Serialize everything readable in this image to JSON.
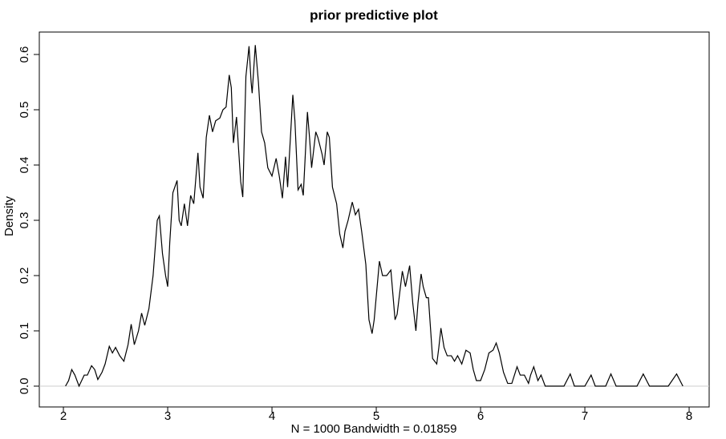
{
  "chart_data": {
    "type": "line",
    "title": "prior predictive plot",
    "x_label": "N = 1000   Bandwidth = 0.01859",
    "y_label": "Density",
    "x": [
      2.02,
      2.05,
      2.08,
      2.11,
      2.15,
      2.2,
      2.23,
      2.27,
      2.3,
      2.33,
      2.37,
      2.4,
      2.44,
      2.47,
      2.5,
      2.54,
      2.58,
      2.62,
      2.65,
      2.68,
      2.72,
      2.75,
      2.78,
      2.82,
      2.86,
      2.9,
      2.92,
      2.95,
      2.98,
      3.0,
      3.02,
      3.05,
      3.09,
      3.11,
      3.13,
      3.16,
      3.19,
      3.22,
      3.25,
      3.29,
      3.31,
      3.34,
      3.37,
      3.4,
      3.43,
      3.46,
      3.5,
      3.53,
      3.56,
      3.59,
      3.61,
      3.63,
      3.66,
      3.7,
      3.72,
      3.75,
      3.78,
      3.8,
      3.81,
      3.84,
      3.87,
      3.9,
      3.93,
      3.96,
      4.0,
      4.04,
      4.07,
      4.1,
      4.13,
      4.15,
      4.2,
      4.22,
      4.25,
      4.28,
      4.3,
      4.34,
      4.36,
      4.38,
      4.42,
      4.44,
      4.48,
      4.5,
      4.53,
      4.55,
      4.58,
      4.62,
      4.65,
      4.68,
      4.7,
      4.73,
      4.77,
      4.8,
      4.83,
      4.86,
      4.9,
      4.93,
      4.96,
      4.98,
      5.03,
      5.06,
      5.1,
      5.14,
      5.18,
      5.2,
      5.25,
      5.28,
      5.32,
      5.35,
      5.38,
      5.4,
      5.43,
      5.45,
      5.48,
      5.5,
      5.54,
      5.58,
      5.6,
      5.62,
      5.65,
      5.68,
      5.72,
      5.75,
      5.78,
      5.82,
      5.86,
      5.9,
      5.93,
      5.96,
      6.0,
      6.04,
      6.08,
      6.12,
      6.15,
      6.18,
      6.22,
      6.26,
      6.3,
      6.35,
      6.38,
      6.42,
      6.46,
      6.48,
      6.51,
      6.55,
      6.58,
      6.62,
      6.7,
      6.8,
      6.86,
      6.9,
      7.0,
      7.06,
      7.1,
      7.2,
      7.25,
      7.3,
      7.5,
      7.56,
      7.62,
      7.8,
      7.88,
      7.94
    ],
    "series": [
      {
        "color": "#000000",
        "values": [
          0.0,
          0.01,
          0.03,
          0.02,
          0.0,
          0.02,
          0.02,
          0.037,
          0.03,
          0.012,
          0.025,
          0.04,
          0.072,
          0.06,
          0.07,
          0.055,
          0.045,
          0.075,
          0.112,
          0.075,
          0.1,
          0.132,
          0.11,
          0.14,
          0.2,
          0.3,
          0.308,
          0.24,
          0.2,
          0.18,
          0.26,
          0.35,
          0.372,
          0.3,
          0.29,
          0.33,
          0.29,
          0.345,
          0.33,
          0.422,
          0.36,
          0.34,
          0.45,
          0.49,
          0.46,
          0.48,
          0.485,
          0.5,
          0.505,
          0.563,
          0.54,
          0.44,
          0.487,
          0.37,
          0.342,
          0.56,
          0.615,
          0.55,
          0.53,
          0.617,
          0.55,
          0.46,
          0.44,
          0.395,
          0.38,
          0.412,
          0.38,
          0.34,
          0.415,
          0.36,
          0.527,
          0.48,
          0.355,
          0.365,
          0.345,
          0.496,
          0.45,
          0.395,
          0.46,
          0.45,
          0.42,
          0.4,
          0.46,
          0.45,
          0.36,
          0.33,
          0.275,
          0.25,
          0.28,
          0.3,
          0.333,
          0.31,
          0.32,
          0.28,
          0.22,
          0.12,
          0.095,
          0.12,
          0.226,
          0.2,
          0.2,
          0.21,
          0.12,
          0.13,
          0.208,
          0.18,
          0.218,
          0.15,
          0.1,
          0.15,
          0.203,
          0.18,
          0.16,
          0.16,
          0.05,
          0.04,
          0.07,
          0.105,
          0.07,
          0.055,
          0.055,
          0.045,
          0.055,
          0.04,
          0.065,
          0.06,
          0.03,
          0.01,
          0.01,
          0.03,
          0.06,
          0.065,
          0.078,
          0.06,
          0.025,
          0.005,
          0.005,
          0.035,
          0.02,
          0.02,
          0.005,
          0.02,
          0.035,
          0.01,
          0.02,
          0.0,
          0.0,
          0.0,
          0.022,
          0.0,
          0.0,
          0.02,
          0.0,
          0.0,
          0.022,
          0.0,
          0.0,
          0.022,
          0.0,
          0.0,
          0.022,
          0.0
        ]
      }
    ],
    "xlim": [
      1.769,
      8.192
    ],
    "ylim": [
      -0.0377,
      0.6406
    ],
    "xticks": [
      2,
      3,
      4,
      5,
      6,
      7,
      8
    ],
    "yticks": [
      {
        "value": 0,
        "label": "0.0"
      },
      0.1,
      0.2,
      0.3,
      0.4,
      0.5,
      0.6
    ]
  }
}
